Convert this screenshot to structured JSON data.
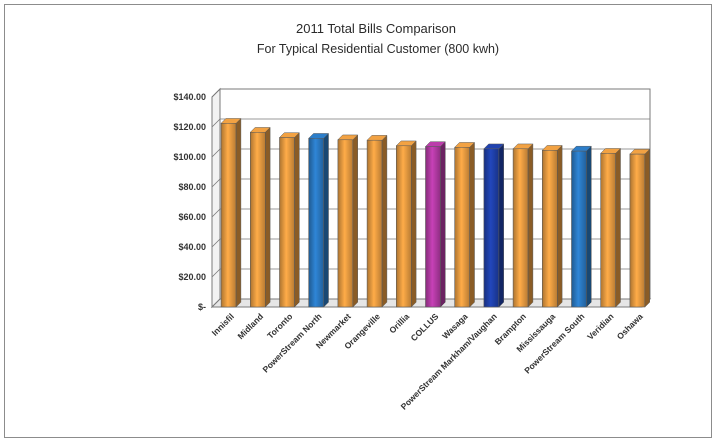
{
  "chart_data": {
    "type": "bar",
    "title": "2011 Total Bills Comparison",
    "subtitle": "For Typical Residential Customer (800 kwh)",
    "xlabel": "",
    "ylabel": "",
    "ylim": [
      0,
      140
    ],
    "y_ticks": [
      "$140.00",
      "$120.00",
      "$100.00",
      "$80.00",
      "$60.00",
      "$40.00",
      "$20.00",
      "$-"
    ],
    "y_tick_values": [
      140,
      120,
      100,
      80,
      60,
      40,
      20,
      0
    ],
    "categories": [
      "Innisfil",
      "Midland",
      "Toronto",
      "PowerStream North",
      "Newmarket",
      "Orangeville",
      "Orillia",
      "COLLUS",
      "Wasaga",
      "PowerStream Markham/Vaughan",
      "Brampton",
      "Mississauga",
      "PowerStream South",
      "Veridian",
      "Oshawa"
    ],
    "values": [
      122.5,
      116.5,
      113,
      112.5,
      111.5,
      111.2,
      107.5,
      107,
      106.5,
      105.5,
      105.5,
      104.5,
      104,
      102.5,
      102
    ],
    "bar_colors": [
      "#E69A40",
      "#E69A40",
      "#E69A40",
      "#2A78C0",
      "#E69A40",
      "#E69A40",
      "#E69A40",
      "#B23AA3",
      "#E69A40",
      "#1E3FA8",
      "#E69A40",
      "#E69A40",
      "#2A78C0",
      "#E69A40",
      "#E69A40"
    ],
    "grid": true,
    "legend": "none"
  }
}
